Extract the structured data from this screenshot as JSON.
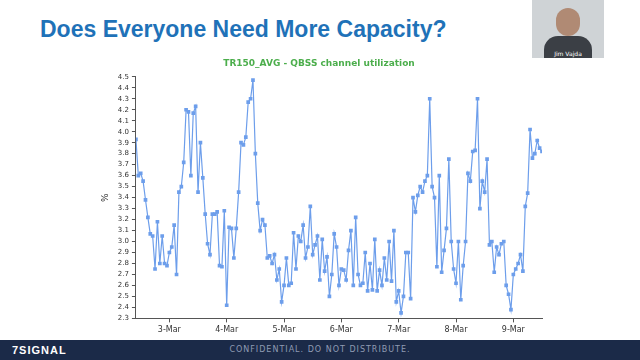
{
  "header": {
    "title": "Does Everyone Need More Capacity?"
  },
  "webcam": {
    "name": "Jim Vajda"
  },
  "footer": {
    "logo": "7SIGNAL",
    "notice": "CONFIDENTIAL. DO NOT DISTRIBUTE."
  },
  "chart_data": {
    "type": "line",
    "title": "TR150_AVG - QBSS channel utilization",
    "y_label": "%",
    "color": "#6d9eeb",
    "marker": "square",
    "grid": false,
    "ylim": [
      2.3,
      4.5
    ],
    "yticks": [
      2.3,
      2.4,
      2.5,
      2.6,
      2.7,
      2.8,
      2.9,
      {
        "value": 3,
        "label": "3.0"
      },
      3.1,
      3.2,
      3.3,
      3.4,
      3.5,
      3.6,
      3.7,
      3.8,
      3.9,
      {
        "value": 4,
        "label": "4.0"
      },
      4.1,
      4.2,
      4.3,
      4.4,
      4.5
    ],
    "categories": [
      null,
      null,
      null,
      null,
      null,
      null,
      null,
      null,
      null,
      null,
      null,
      null,
      null,
      null,
      "3-Mar",
      null,
      null,
      null,
      null,
      null,
      null,
      null,
      null,
      null,
      null,
      null,
      null,
      null,
      null,
      null,
      null,
      null,
      null,
      null,
      null,
      null,
      null,
      null,
      "4-Mar",
      null,
      null,
      null,
      null,
      null,
      null,
      null,
      null,
      null,
      null,
      null,
      null,
      null,
      null,
      null,
      null,
      null,
      null,
      null,
      null,
      null,
      null,
      null,
      "5-Mar",
      null,
      null,
      null,
      null,
      null,
      null,
      null,
      null,
      null,
      null,
      null,
      null,
      null,
      null,
      null,
      null,
      null,
      null,
      null,
      null,
      null,
      null,
      null,
      "6-Mar",
      null,
      null,
      null,
      null,
      null,
      null,
      null,
      null,
      null,
      null,
      null,
      null,
      null,
      null,
      null,
      null,
      null,
      null,
      null,
      null,
      null,
      null,
      null,
      "7-Mar",
      null,
      null,
      null,
      null,
      null,
      null,
      null,
      null,
      null,
      null,
      null,
      null,
      null,
      null,
      null,
      null,
      null,
      null,
      null,
      null,
      null,
      null,
      null,
      "8-Mar",
      null,
      null,
      null,
      null,
      null,
      null,
      null,
      null,
      null,
      null,
      null,
      null,
      null,
      null,
      null,
      null,
      null,
      null,
      null,
      null,
      null,
      null,
      null,
      "9-Mar",
      null,
      null,
      null,
      null,
      null,
      null,
      null,
      null,
      null,
      null,
      null,
      null
    ],
    "values": [
      3.93,
      3.6,
      3.62,
      3.55,
      3.38,
      3.22,
      3.07,
      3.05,
      2.75,
      3.18,
      2.8,
      3.05,
      2.8,
      2.78,
      2.9,
      2.95,
      3.15,
      2.7,
      3.45,
      3.5,
      3.72,
      4.2,
      4.18,
      3.6,
      4.17,
      4.23,
      3.45,
      3.9,
      3.58,
      3.25,
      2.98,
      2.88,
      3.25,
      3.25,
      3.27,
      2.78,
      2.77,
      3.28,
      2.42,
      3.13,
      3.12,
      2.85,
      3.12,
      3.45,
      3.9,
      3.88,
      3.95,
      4.27,
      4.3,
      4.47,
      3.8,
      3.35,
      3.1,
      3.2,
      3.15,
      2.85,
      2.87,
      2.8,
      2.88,
      2.65,
      2.75,
      2.45,
      2.6,
      2.85,
      2.6,
      2.62,
      3.08,
      2.75,
      3.05,
      3.0,
      3.15,
      2.85,
      2.95,
      3.32,
      2.88,
      2.97,
      3.05,
      2.65,
      3.02,
      2.73,
      2.86,
      2.5,
      2.7,
      3.07,
      2.95,
      2.6,
      2.75,
      2.74,
      2.65,
      2.92,
      3.1,
      2.6,
      3.22,
      2.7,
      2.6,
      2.62,
      2.9,
      2.55,
      2.8,
      2.56,
      3.02,
      2.55,
      2.74,
      2.6,
      2.85,
      2.65,
      3.0,
      2.64,
      3.1,
      2.45,
      2.55,
      2.35,
      2.5,
      2.9,
      2.9,
      2.48,
      3.4,
      3.27,
      3.42,
      3.5,
      3.45,
      3.55,
      3.6,
      4.3,
      3.5,
      3.4,
      2.77,
      3.6,
      2.72,
      2.92,
      3.12,
      3.75,
      3.0,
      2.75,
      2.62,
      3.0,
      2.47,
      2.78,
      3.0,
      3.62,
      3.55,
      3.82,
      3.83,
      4.3,
      3.3,
      3.55,
      3.45,
      3.75,
      2.97,
      3.0,
      2.72,
      2.95,
      2.88,
      2.98,
      3.0,
      2.6,
      2.52,
      2.38,
      2.7,
      2.75,
      2.8,
      2.88,
      2.73,
      3.32,
      3.44,
      4.02,
      3.76,
      3.8,
      3.92,
      3.85,
      3.82
    ]
  }
}
